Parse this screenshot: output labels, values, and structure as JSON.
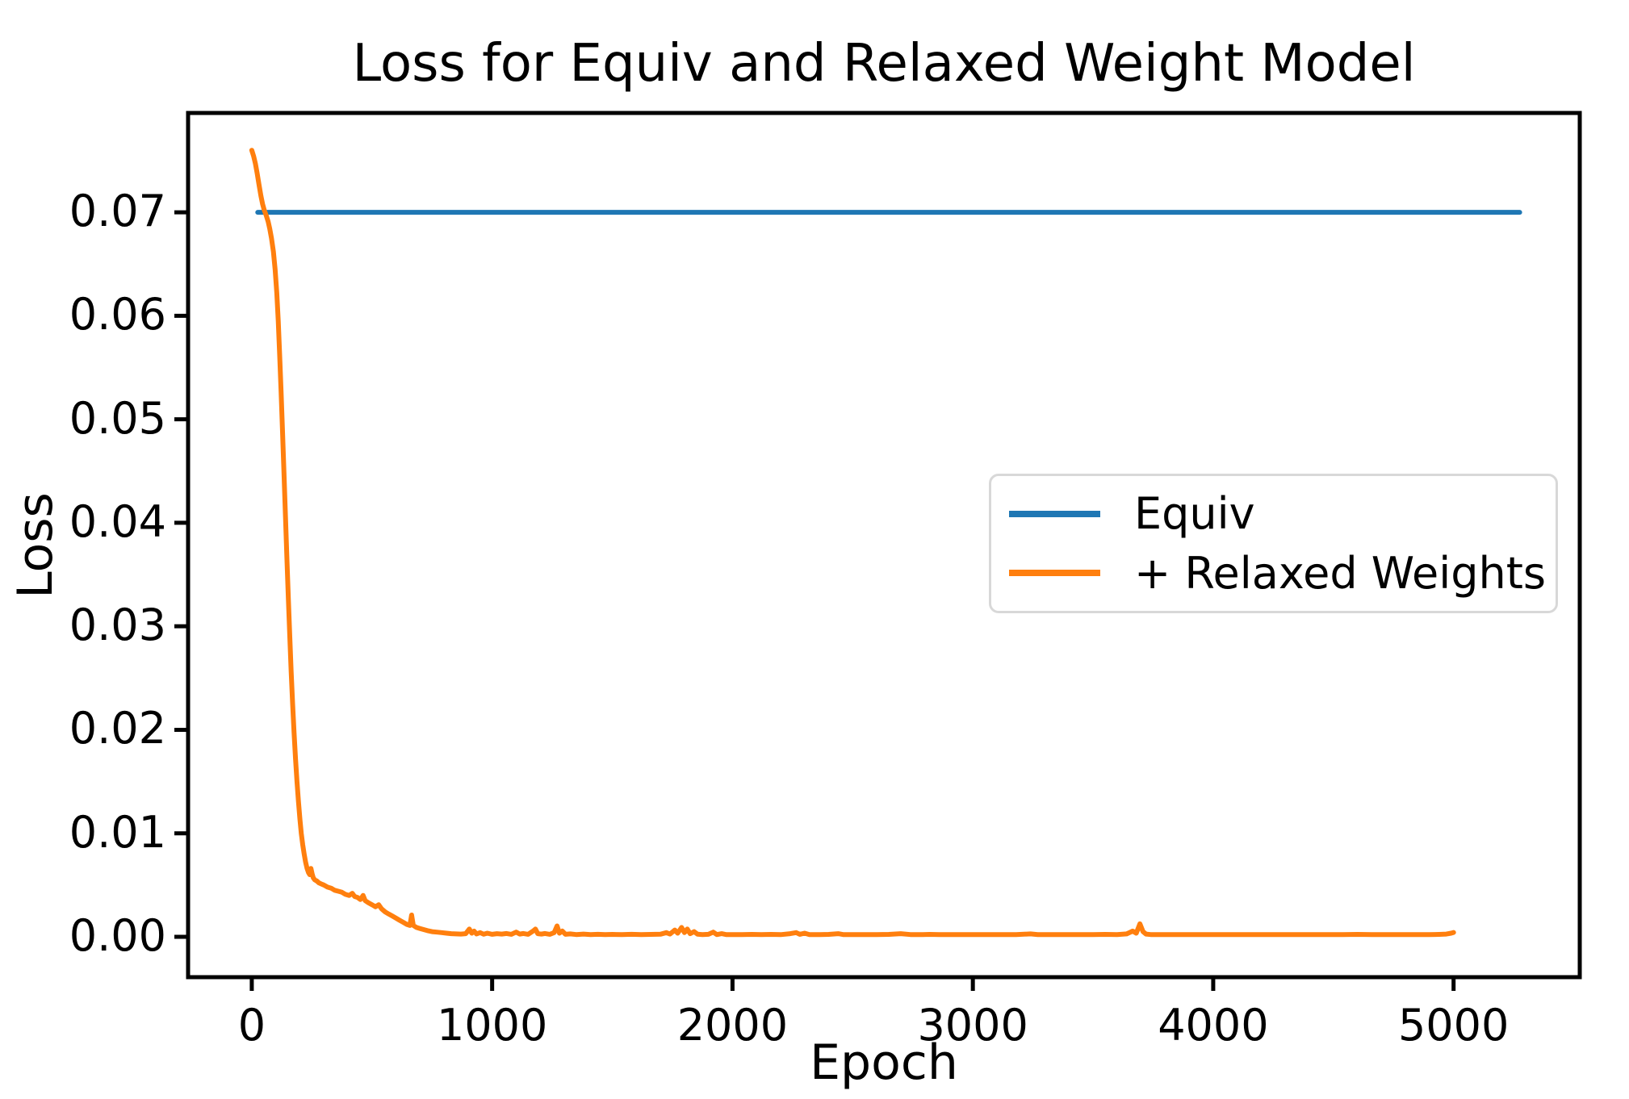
{
  "figure": {
    "title": "Loss for Equiv and Relaxed Weight Model"
  },
  "chart_data": {
    "type": "line",
    "title": "Loss for Equiv and Relaxed Weight Model",
    "xlabel": "Epoch",
    "ylabel": "Loss",
    "xlim": [
      -265,
      5525
    ],
    "ylim": [
      -0.0039,
      0.0796
    ],
    "grid": false,
    "legend_position": "center right",
    "x_ticks": [
      0,
      1000,
      2000,
      3000,
      4000,
      5000
    ],
    "x_tick_labels": [
      "0",
      "1000",
      "2000",
      "3000",
      "4000",
      "5000"
    ],
    "y_ticks": [
      0.0,
      0.01,
      0.02,
      0.03,
      0.04,
      0.05,
      0.06,
      0.07
    ],
    "y_tick_labels": [
      "0.00",
      "0.01",
      "0.02",
      "0.03",
      "0.04",
      "0.05",
      "0.06",
      "0.07"
    ],
    "series": [
      {
        "name": "Equiv",
        "color": "#1f77b4",
        "points": [
          [
            25,
            0.07
          ],
          [
            5275,
            0.07
          ]
        ]
      },
      {
        "name": "+ Relaxed Weights",
        "color": "#ff7f0e",
        "points": [
          [
            0,
            0.076
          ],
          [
            8,
            0.0754
          ],
          [
            15,
            0.0747
          ],
          [
            22,
            0.0738
          ],
          [
            30,
            0.0727
          ],
          [
            38,
            0.0716
          ],
          [
            45,
            0.0708
          ],
          [
            52,
            0.0702
          ],
          [
            60,
            0.0697
          ],
          [
            68,
            0.0691
          ],
          [
            75,
            0.0684
          ],
          [
            82,
            0.0675
          ],
          [
            90,
            0.0662
          ],
          [
            97,
            0.0645
          ],
          [
            104,
            0.0622
          ],
          [
            110,
            0.0595
          ],
          [
            116,
            0.0563
          ],
          [
            122,
            0.0527
          ],
          [
            128,
            0.0488
          ],
          [
            134,
            0.0448
          ],
          [
            140,
            0.0407
          ],
          [
            146,
            0.0366
          ],
          [
            152,
            0.0327
          ],
          [
            158,
            0.029
          ],
          [
            164,
            0.0256
          ],
          [
            170,
            0.0225
          ],
          [
            176,
            0.0197
          ],
          [
            182,
            0.0172
          ],
          [
            188,
            0.015
          ],
          [
            194,
            0.0131
          ],
          [
            200,
            0.0114
          ],
          [
            206,
            0.01
          ],
          [
            212,
            0.0089
          ],
          [
            218,
            0.008
          ],
          [
            224,
            0.0072
          ],
          [
            230,
            0.0066
          ],
          [
            236,
            0.0062
          ],
          [
            241,
            0.006
          ],
          [
            246,
            0.0066
          ],
          [
            251,
            0.0061
          ],
          [
            256,
            0.0057
          ],
          [
            262,
            0.0055
          ],
          [
            270,
            0.0054
          ],
          [
            280,
            0.0052
          ],
          [
            290,
            0.0051
          ],
          [
            300,
            0.005
          ],
          [
            315,
            0.0048
          ],
          [
            330,
            0.0047
          ],
          [
            345,
            0.0045
          ],
          [
            360,
            0.0044
          ],
          [
            375,
            0.0043
          ],
          [
            390,
            0.0041
          ],
          [
            405,
            0.004
          ],
          [
            418,
            0.0042
          ],
          [
            428,
            0.0039
          ],
          [
            440,
            0.0038
          ],
          [
            452,
            0.0036
          ],
          [
            463,
            0.004
          ],
          [
            472,
            0.0035
          ],
          [
            485,
            0.0033
          ],
          [
            500,
            0.0031
          ],
          [
            515,
            0.0029
          ],
          [
            528,
            0.0031
          ],
          [
            540,
            0.0027
          ],
          [
            555,
            0.0024
          ],
          [
            570,
            0.0022
          ],
          [
            585,
            0.002
          ],
          [
            600,
            0.0018
          ],
          [
            615,
            0.0016
          ],
          [
            630,
            0.0014
          ],
          [
            645,
            0.0012
          ],
          [
            658,
            0.0011
          ],
          [
            665,
            0.0021
          ],
          [
            672,
            0.0011
          ],
          [
            685,
            0.0009
          ],
          [
            700,
            0.0008
          ],
          [
            715,
            0.0007
          ],
          [
            730,
            0.0006
          ],
          [
            750,
            0.0005
          ],
          [
            770,
            0.00045
          ],
          [
            790,
            0.0004
          ],
          [
            810,
            0.00035
          ],
          [
            830,
            0.0003
          ],
          [
            850,
            0.00028
          ],
          [
            870,
            0.00026
          ],
          [
            890,
            0.0003
          ],
          [
            905,
            0.00075
          ],
          [
            915,
            0.00035
          ],
          [
            925,
            0.00055
          ],
          [
            935,
            0.00028
          ],
          [
            950,
            0.0004
          ],
          [
            965,
            0.00025
          ],
          [
            980,
            0.00035
          ],
          [
            1000,
            0.00024
          ],
          [
            1020,
            0.0003
          ],
          [
            1040,
            0.00026
          ],
          [
            1060,
            0.00032
          ],
          [
            1080,
            0.00024
          ],
          [
            1100,
            0.00045
          ],
          [
            1115,
            0.00026
          ],
          [
            1130,
            0.00032
          ],
          [
            1150,
            0.00024
          ],
          [
            1170,
            0.00055
          ],
          [
            1180,
            0.00075
          ],
          [
            1190,
            0.0003
          ],
          [
            1205,
            0.00026
          ],
          [
            1220,
            0.00032
          ],
          [
            1240,
            0.00024
          ],
          [
            1258,
            0.0004
          ],
          [
            1270,
            0.00105
          ],
          [
            1280,
            0.00035
          ],
          [
            1292,
            0.00055
          ],
          [
            1305,
            0.00024
          ],
          [
            1325,
            0.00028
          ],
          [
            1350,
            0.00022
          ],
          [
            1380,
            0.00026
          ],
          [
            1410,
            0.00021
          ],
          [
            1440,
            0.00024
          ],
          [
            1470,
            0.00021
          ],
          [
            1500,
            0.00023
          ],
          [
            1540,
            0.00021
          ],
          [
            1580,
            0.00024
          ],
          [
            1620,
            0.00021
          ],
          [
            1660,
            0.00023
          ],
          [
            1700,
            0.00025
          ],
          [
            1725,
            0.0004
          ],
          [
            1740,
            0.00026
          ],
          [
            1760,
            0.00065
          ],
          [
            1772,
            0.00035
          ],
          [
            1788,
            0.0009
          ],
          [
            1800,
            0.0004
          ],
          [
            1812,
            0.00075
          ],
          [
            1824,
            0.0003
          ],
          [
            1840,
            0.0005
          ],
          [
            1855,
            0.00025
          ],
          [
            1875,
            0.00022
          ],
          [
            1900,
            0.00024
          ],
          [
            1920,
            0.00045
          ],
          [
            1935,
            0.00022
          ],
          [
            1955,
            0.0003
          ],
          [
            1975,
            0.00021
          ],
          [
            2000,
            0.00022
          ],
          [
            2040,
            0.00021
          ],
          [
            2080,
            0.00023
          ],
          [
            2120,
            0.00021
          ],
          [
            2160,
            0.00023
          ],
          [
            2200,
            0.00021
          ],
          [
            2240,
            0.0003
          ],
          [
            2265,
            0.0004
          ],
          [
            2280,
            0.00024
          ],
          [
            2300,
            0.00035
          ],
          [
            2320,
            0.00022
          ],
          [
            2350,
            0.00021
          ],
          [
            2400,
            0.00023
          ],
          [
            2440,
            0.0003
          ],
          [
            2460,
            0.00022
          ],
          [
            2500,
            0.00021
          ],
          [
            2550,
            0.00022
          ],
          [
            2600,
            0.00021
          ],
          [
            2650,
            0.00023
          ],
          [
            2700,
            0.0003
          ],
          [
            2740,
            0.00022
          ],
          [
            2780,
            0.00021
          ],
          [
            2820,
            0.00023
          ],
          [
            2860,
            0.00021
          ],
          [
            2900,
            0.00022
          ],
          [
            2950,
            0.00021
          ],
          [
            3000,
            0.00022
          ],
          [
            3060,
            0.00021
          ],
          [
            3120,
            0.00022
          ],
          [
            3180,
            0.00021
          ],
          [
            3240,
            0.00028
          ],
          [
            3270,
            0.00022
          ],
          [
            3320,
            0.00021
          ],
          [
            3380,
            0.00022
          ],
          [
            3440,
            0.00021
          ],
          [
            3500,
            0.00022
          ],
          [
            3550,
            0.00023
          ],
          [
            3600,
            0.00022
          ],
          [
            3640,
            0.00028
          ],
          [
            3665,
            0.00055
          ],
          [
            3680,
            0.00035
          ],
          [
            3695,
            0.00125
          ],
          [
            3708,
            0.0005
          ],
          [
            3720,
            0.00026
          ],
          [
            3740,
            0.00022
          ],
          [
            3770,
            0.00021
          ],
          [
            3800,
            0.00022
          ],
          [
            3850,
            0.00021
          ],
          [
            3900,
            0.00022
          ],
          [
            3950,
            0.00021
          ],
          [
            4000,
            0.00022
          ],
          [
            4060,
            0.00021
          ],
          [
            4120,
            0.00022
          ],
          [
            4180,
            0.00021
          ],
          [
            4240,
            0.00022
          ],
          [
            4300,
            0.00021
          ],
          [
            4360,
            0.00022
          ],
          [
            4420,
            0.00021
          ],
          [
            4480,
            0.00022
          ],
          [
            4540,
            0.00021
          ],
          [
            4600,
            0.00023
          ],
          [
            4660,
            0.00021
          ],
          [
            4720,
            0.00022
          ],
          [
            4780,
            0.00021
          ],
          [
            4840,
            0.00022
          ],
          [
            4900,
            0.00021
          ],
          [
            4940,
            0.00023
          ],
          [
            4970,
            0.00026
          ],
          [
            4990,
            0.00035
          ],
          [
            5000,
            0.00042
          ]
        ]
      }
    ]
  }
}
